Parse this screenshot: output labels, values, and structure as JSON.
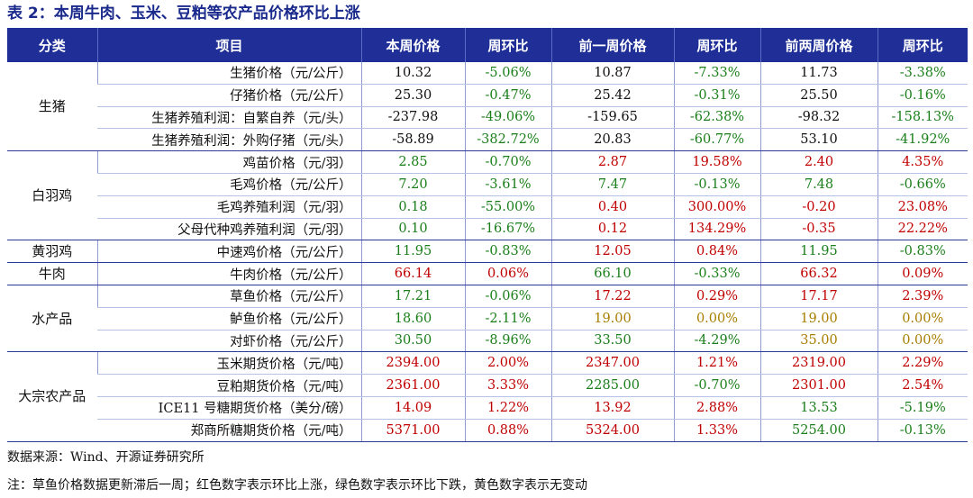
{
  "title": "表 2：本周牛肉、玉米、豆粕等农产品价格环比上涨",
  "headers": [
    "分类",
    "项目",
    "本周价格",
    "周环比",
    "前一周价格",
    "周环比",
    "前两周价格",
    "周环比"
  ],
  "groups": [
    {
      "category": "生猪",
      "rows": [
        {
          "item": "生猪价格（元/公斤）",
          "cells": [
            {
              "v": "10.32",
              "c": "plain"
            },
            {
              "v": "-5.06%",
              "c": "down"
            },
            {
              "v": "10.87",
              "c": "plain"
            },
            {
              "v": "-7.33%",
              "c": "down"
            },
            {
              "v": "11.73",
              "c": "plain"
            },
            {
              "v": "-3.38%",
              "c": "down"
            }
          ]
        },
        {
          "item": "仔猪价格（元/公斤）",
          "cells": [
            {
              "v": "25.30",
              "c": "plain"
            },
            {
              "v": "-0.47%",
              "c": "down"
            },
            {
              "v": "25.42",
              "c": "plain"
            },
            {
              "v": "-0.31%",
              "c": "down"
            },
            {
              "v": "25.50",
              "c": "plain"
            },
            {
              "v": "-0.16%",
              "c": "down"
            }
          ]
        },
        {
          "item": "生猪养殖利润：自繁自养（元/头）",
          "cells": [
            {
              "v": "-237.98",
              "c": "plain"
            },
            {
              "v": "-49.06%",
              "c": "down"
            },
            {
              "v": "-159.65",
              "c": "plain"
            },
            {
              "v": "-62.38%",
              "c": "down"
            },
            {
              "v": "-98.32",
              "c": "plain"
            },
            {
              "v": "-158.13%",
              "c": "down"
            }
          ]
        },
        {
          "item": "生猪养殖利润：外购仔猪（元/头）",
          "cells": [
            {
              "v": "-58.89",
              "c": "plain"
            },
            {
              "v": "-382.72%",
              "c": "down"
            },
            {
              "v": "20.83",
              "c": "plain"
            },
            {
              "v": "-60.77%",
              "c": "down"
            },
            {
              "v": "53.10",
              "c": "plain"
            },
            {
              "v": "-41.92%",
              "c": "down"
            }
          ]
        }
      ]
    },
    {
      "category": "白羽鸡",
      "rows": [
        {
          "item": "鸡苗价格（元/羽）",
          "cells": [
            {
              "v": "2.85",
              "c": "down"
            },
            {
              "v": "-0.70%",
              "c": "down"
            },
            {
              "v": "2.87",
              "c": "up"
            },
            {
              "v": "19.58%",
              "c": "up"
            },
            {
              "v": "2.40",
              "c": "up"
            },
            {
              "v": "4.35%",
              "c": "up"
            }
          ]
        },
        {
          "item": "毛鸡价格（元/公斤）",
          "cells": [
            {
              "v": "7.20",
              "c": "down"
            },
            {
              "v": "-3.61%",
              "c": "down"
            },
            {
              "v": "7.47",
              "c": "down"
            },
            {
              "v": "-0.13%",
              "c": "down"
            },
            {
              "v": "7.48",
              "c": "down"
            },
            {
              "v": "-0.66%",
              "c": "down"
            }
          ]
        },
        {
          "item": "毛鸡养殖利润（元/羽）",
          "cells": [
            {
              "v": "0.18",
              "c": "down"
            },
            {
              "v": "-55.00%",
              "c": "down"
            },
            {
              "v": "0.40",
              "c": "up"
            },
            {
              "v": "300.00%",
              "c": "up"
            },
            {
              "v": "-0.20",
              "c": "up"
            },
            {
              "v": "23.08%",
              "c": "up"
            }
          ]
        },
        {
          "item": "父母代种鸡养殖利润（元/羽）",
          "cells": [
            {
              "v": "0.10",
              "c": "down"
            },
            {
              "v": "-16.67%",
              "c": "down"
            },
            {
              "v": "0.12",
              "c": "up"
            },
            {
              "v": "134.29%",
              "c": "up"
            },
            {
              "v": "-0.35",
              "c": "up"
            },
            {
              "v": "22.22%",
              "c": "up"
            }
          ]
        }
      ]
    },
    {
      "category": "黄羽鸡",
      "rows": [
        {
          "item": "中速鸡价格（元/公斤）",
          "cells": [
            {
              "v": "11.95",
              "c": "down"
            },
            {
              "v": "-0.83%",
              "c": "down"
            },
            {
              "v": "12.05",
              "c": "up"
            },
            {
              "v": "0.84%",
              "c": "up"
            },
            {
              "v": "11.95",
              "c": "down"
            },
            {
              "v": "-0.83%",
              "c": "down"
            }
          ]
        }
      ]
    },
    {
      "category": "牛肉",
      "rows": [
        {
          "item": "牛肉价格（元/公斤）",
          "cells": [
            {
              "v": "66.14",
              "c": "up"
            },
            {
              "v": "0.06%",
              "c": "up"
            },
            {
              "v": "66.10",
              "c": "down"
            },
            {
              "v": "-0.33%",
              "c": "down"
            },
            {
              "v": "66.32",
              "c": "up"
            },
            {
              "v": "0.09%",
              "c": "up"
            }
          ]
        }
      ]
    },
    {
      "category": "水产品",
      "rows": [
        {
          "item": "草鱼价格（元/公斤）",
          "cells": [
            {
              "v": "17.21",
              "c": "down"
            },
            {
              "v": "-0.06%",
              "c": "down"
            },
            {
              "v": "17.22",
              "c": "up"
            },
            {
              "v": "0.29%",
              "c": "up"
            },
            {
              "v": "17.17",
              "c": "up"
            },
            {
              "v": "2.39%",
              "c": "up"
            }
          ]
        },
        {
          "item": "鲈鱼价格（元/公斤）",
          "cells": [
            {
              "v": "18.60",
              "c": "down"
            },
            {
              "v": "-2.11%",
              "c": "down"
            },
            {
              "v": "19.00",
              "c": "flat"
            },
            {
              "v": "0.00%",
              "c": "flat"
            },
            {
              "v": "19.00",
              "c": "flat"
            },
            {
              "v": "0.00%",
              "c": "flat"
            }
          ]
        },
        {
          "item": "对虾价格（元/公斤）",
          "cells": [
            {
              "v": "30.50",
              "c": "down"
            },
            {
              "v": "-8.96%",
              "c": "down"
            },
            {
              "v": "33.50",
              "c": "down"
            },
            {
              "v": "-4.29%",
              "c": "down"
            },
            {
              "v": "35.00",
              "c": "flat"
            },
            {
              "v": "0.00%",
              "c": "flat"
            }
          ]
        }
      ]
    },
    {
      "category": "大宗农产品",
      "rows": [
        {
          "item": "玉米期货价格（元/吨）",
          "cells": [
            {
              "v": "2394.00",
              "c": "up"
            },
            {
              "v": "2.00%",
              "c": "up"
            },
            {
              "v": "2347.00",
              "c": "up"
            },
            {
              "v": "1.21%",
              "c": "up"
            },
            {
              "v": "2319.00",
              "c": "up"
            },
            {
              "v": "2.29%",
              "c": "up"
            }
          ]
        },
        {
          "item": "豆粕期货价格（元/吨）",
          "cells": [
            {
              "v": "2361.00",
              "c": "up"
            },
            {
              "v": "3.33%",
              "c": "up"
            },
            {
              "v": "2285.00",
              "c": "down"
            },
            {
              "v": "-0.70%",
              "c": "down"
            },
            {
              "v": "2301.00",
              "c": "up"
            },
            {
              "v": "2.54%",
              "c": "up"
            }
          ]
        },
        {
          "item": "ICE11 号糖期货价格（美分/磅）",
          "cells": [
            {
              "v": "14.09",
              "c": "up"
            },
            {
              "v": "1.22%",
              "c": "up"
            },
            {
              "v": "13.92",
              "c": "up"
            },
            {
              "v": "2.88%",
              "c": "up"
            },
            {
              "v": "13.53",
              "c": "down"
            },
            {
              "v": "-5.19%",
              "c": "down"
            }
          ]
        },
        {
          "item": "郑商所糖期货价格（元/吨）",
          "cells": [
            {
              "v": "5371.00",
              "c": "up"
            },
            {
              "v": "0.88%",
              "c": "up"
            },
            {
              "v": "5324.00",
              "c": "up"
            },
            {
              "v": "1.33%",
              "c": "up"
            },
            {
              "v": "5254.00",
              "c": "down"
            },
            {
              "v": "-0.13%",
              "c": "down"
            }
          ]
        }
      ]
    }
  ],
  "source": "数据来源：Wind、开源证券研究所",
  "note": "注：草鱼价格数据更新滞后一周；红色数字表示环比上涨，绿色数字表示环比下跌，黄色数字表示无变动",
  "colors": {
    "header_bg": "#1f2f97",
    "up": "#c00000",
    "down": "#1a7f1a",
    "flat": "#a87d00"
  }
}
